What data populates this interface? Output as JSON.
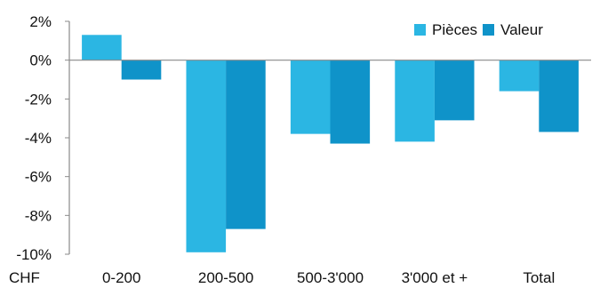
{
  "chart_data": {
    "type": "bar",
    "currency_label": "CHF",
    "categories": [
      "0-200",
      "200-500",
      "500-3'000",
      "3'000 et +",
      "Total"
    ],
    "series": [
      {
        "name": "Pièces",
        "color": "#2bb6e3",
        "values": [
          1.3,
          -9.9,
          -3.8,
          -4.2,
          -1.6
        ]
      },
      {
        "name": "Valeur",
        "color": "#0f93c9",
        "values": [
          -1.0,
          -8.7,
          -4.3,
          -3.1,
          -3.7
        ]
      }
    ],
    "y_ticks": [
      "2%",
      "0%",
      "-2%",
      "-4%",
      "-6%",
      "-8%",
      "-10%"
    ],
    "ylim": [
      -10,
      2
    ],
    "legend_position": "top-right",
    "grid": false
  }
}
